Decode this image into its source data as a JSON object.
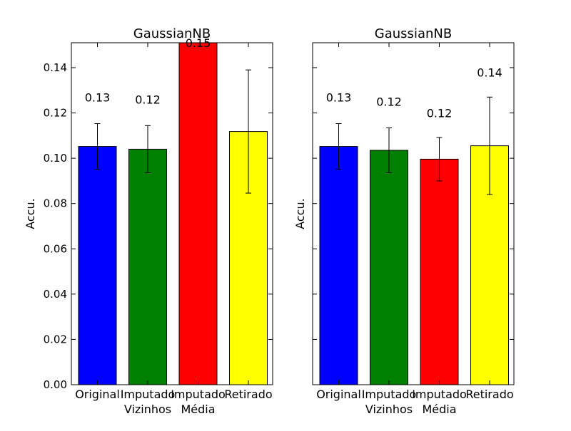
{
  "chart_data": [
    {
      "type": "bar",
      "title": "GaussianNB",
      "ylabel": "Accu.",
      "xlabel": "",
      "ylim": [
        0,
        0.151
      ],
      "yticks": [
        "0.00",
        "0.02",
        "0.04",
        "0.06",
        "0.08",
        "0.10",
        "0.12",
        "0.14"
      ],
      "categories": [
        [
          "Original"
        ],
        [
          "Imputado",
          "Vizinhos"
        ],
        [
          "Imputado",
          "Média"
        ],
        [
          "Retirado"
        ]
      ],
      "values": [
        0.1052,
        0.104,
        0.1515,
        0.1118
      ],
      "errors": [
        0.0101,
        0.0104,
        0.0,
        0.0272
      ],
      "data_labels": [
        "0.13",
        "0.12",
        "0.15",
        ""
      ],
      "label_values": [
        0.127,
        0.126,
        0.151,
        0.0
      ],
      "colors": [
        "#0000ff",
        "#008000",
        "#ff0000",
        "#ffff00"
      ],
      "grid": false
    },
    {
      "type": "bar",
      "title": "GaussianNB",
      "ylabel": "Accu.",
      "xlabel": "",
      "ylim": [
        0,
        0.151
      ],
      "categories": [
        [
          "Original"
        ],
        [
          "Imputado",
          "Vizinhos"
        ],
        [
          "Imputado",
          "Média"
        ],
        [
          "Retirado"
        ]
      ],
      "values": [
        0.1052,
        0.1035,
        0.0996,
        0.1055
      ],
      "errors": [
        0.0101,
        0.0099,
        0.0096,
        0.0215
      ],
      "data_labels": [
        "0.13",
        "0.12",
        "0.12",
        "0.14"
      ],
      "label_values": [
        0.127,
        0.125,
        0.12,
        0.138
      ],
      "colors": [
        "#0000ff",
        "#008000",
        "#ff0000",
        "#ffff00"
      ],
      "grid": false
    }
  ]
}
